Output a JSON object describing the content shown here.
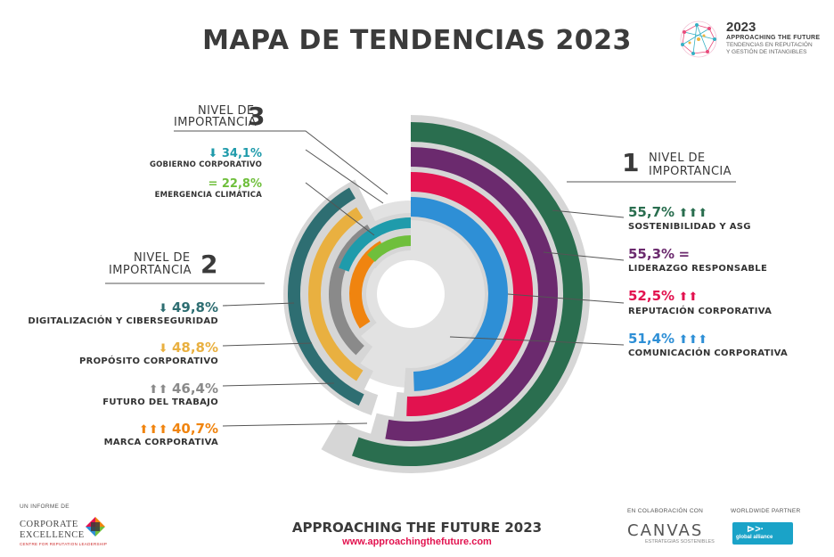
{
  "header": {
    "title": "MAPA DE TENDENCIAS 2023"
  },
  "brand": {
    "year": "2023",
    "name": "APPROACHING THE FUTURE",
    "subtitle_line1": "TENDENCIAS EN REPUTACIÓN",
    "subtitle_line2": "Y GESTIÓN DE INTANGIBLES"
  },
  "levels": {
    "level1": {
      "label_line1": "NIVEL DE",
      "label_line2": "IMPORTANCIA",
      "number": "1"
    },
    "level2": {
      "label_line1": "NIVEL DE",
      "label_line2": "IMPORTANCIA",
      "number": "2"
    },
    "level3": {
      "label_line1": "NIVEL DE",
      "label_line2": "IMPORTANCIA",
      "number": "3"
    }
  },
  "chart_data": {
    "type": "radial-bar",
    "series": [
      {
        "name": "SOSTENIBILIDAD Y ASG",
        "value": 55.7,
        "value_label": "55,7%",
        "level": 1,
        "trend": "up3",
        "trend_symbol": "⬆⬆⬆",
        "color": "#2a6e4f"
      },
      {
        "name": "LIDERAZGO RESPONSABLE",
        "value": 55.3,
        "value_label": "55,3%",
        "level": 1,
        "trend": "equal",
        "trend_symbol": "=",
        "color": "#6b2a6e"
      },
      {
        "name": "REPUTACIÓN CORPORATIVA",
        "value": 52.5,
        "value_label": "52,5%",
        "level": 1,
        "trend": "up2",
        "trend_symbol": "⬆⬆",
        "color": "#e2124f"
      },
      {
        "name": "COMUNICACIÓN CORPORATIVA",
        "value": 51.4,
        "value_label": "51,4%",
        "level": 1,
        "trend": "up3",
        "trend_symbol": "⬆⬆⬆",
        "color": "#2e8fd6"
      },
      {
        "name": "DIGITALIZACIÓN Y CIBERSEGURIDAD",
        "value": 49.8,
        "value_label": "49,8%",
        "level": 2,
        "trend": "down",
        "trend_symbol": "⬇",
        "color": "#2e6e72"
      },
      {
        "name": "PROPÓSITO CORPORATIVO",
        "value": 48.8,
        "value_label": "48,8%",
        "level": 2,
        "trend": "down",
        "trend_symbol": "⬇",
        "color": "#e9b040"
      },
      {
        "name": "FUTURO DEL TRABAJO",
        "value": 46.4,
        "value_label": "46,4%",
        "level": 2,
        "trend": "up2",
        "trend_symbol": "⬆⬆",
        "color": "#8a8a8a"
      },
      {
        "name": "MARCA CORPORATIVA",
        "value": 40.7,
        "value_label": "40,7%",
        "level": 2,
        "trend": "up3",
        "trend_symbol": "⬆⬆⬆",
        "color": "#f0840f"
      },
      {
        "name": "GOBIERNO CORPORATIVO",
        "value": 34.1,
        "value_label": "34,1%",
        "level": 3,
        "trend": "down",
        "trend_symbol": "⬇",
        "color": "#1f9bab"
      },
      {
        "name": "EMERGENCIA CLIMÁTICA",
        "value": 22.8,
        "value_label": "22,8%",
        "level": 3,
        "trend": "equal",
        "trend_symbol": "=",
        "color": "#6fbf3c"
      }
    ]
  },
  "footer": {
    "title": "APPROACHING THE FUTURE 2023",
    "url": "www.approachingthefuture.com",
    "report_label": "UN INFORME DE",
    "org_line1": "CORPORATE",
    "org_line2": "EXCELLENCE",
    "org_line3": "CENTRE FOR REPUTATION LEADERSHIP",
    "collab_label": "EN COLABORACIÓN CON",
    "collab_name": "CANVAS",
    "collab_sub": "ESTRATEGIAS SOSTENIBLES",
    "partner_label": "WORLDWIDE PARTNER",
    "partner_name": "global alliance",
    "partner_icon": "⊳>·"
  },
  "colors": {
    "track": "#d6d6d6",
    "text": "#3a3a3a",
    "accent": "#e2124f"
  }
}
